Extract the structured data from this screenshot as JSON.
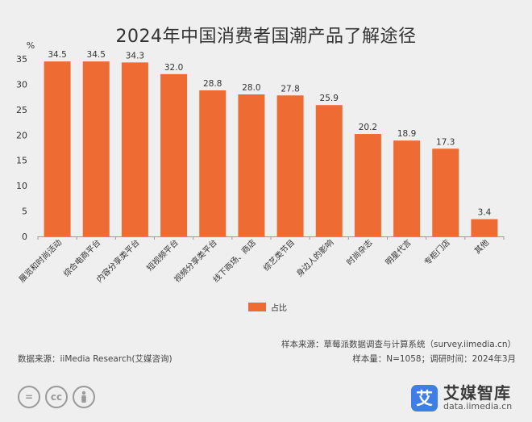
{
  "title": "2024年中国消费者国潮产品了解途径",
  "chart_data": {
    "type": "bar",
    "unit_label": "%",
    "categories": [
      "展览和时尚活动",
      "综合电商平台",
      "内容分享类平台",
      "短视频平台",
      "视频分享类平台",
      "线下商场、商店",
      "综艺类节目",
      "身边人的影响",
      "时尚杂志",
      "明星代言",
      "专柜门店",
      "其他"
    ],
    "series": [
      {
        "name": "占比",
        "values": [
          34.5,
          34.5,
          34.3,
          32.0,
          28.8,
          28.0,
          27.8,
          25.9,
          20.2,
          18.9,
          17.3,
          3.4
        ],
        "color": "#ee6c34"
      }
    ],
    "value_labels": [
      "34.5",
      "34.5",
      "34.3",
      "32.0",
      "28.8",
      "28.0",
      "27.8",
      "25.9",
      "20.2",
      "18.9",
      "17.3",
      "3.4"
    ],
    "yticks": [
      "0",
      "5",
      "10",
      "15",
      "20",
      "25",
      "30",
      "35"
    ],
    "ylim": [
      0,
      35
    ],
    "grid": false,
    "legend_position": "bottom"
  },
  "legend": {
    "label": "占比",
    "color": "#ee6c34"
  },
  "notes": {
    "sample_source": "样本来源：草莓派数据调查与计算系统（survey.iimedia.cn）",
    "sample_size": "样本量：N=1058；调研时间：2024年3月",
    "data_source": "数据来源：iiMedia Research(艾媒咨询)"
  },
  "license_icons": [
    "equals-icon",
    "cc-icon",
    "person-icon"
  ],
  "license_glyphs": {
    "equals": "=",
    "cc": "cc"
  },
  "brand": {
    "icon_glyph": "艾",
    "name": "艾媒智库",
    "url": "data.iimedia.cn",
    "color": "#3f7ee6"
  }
}
